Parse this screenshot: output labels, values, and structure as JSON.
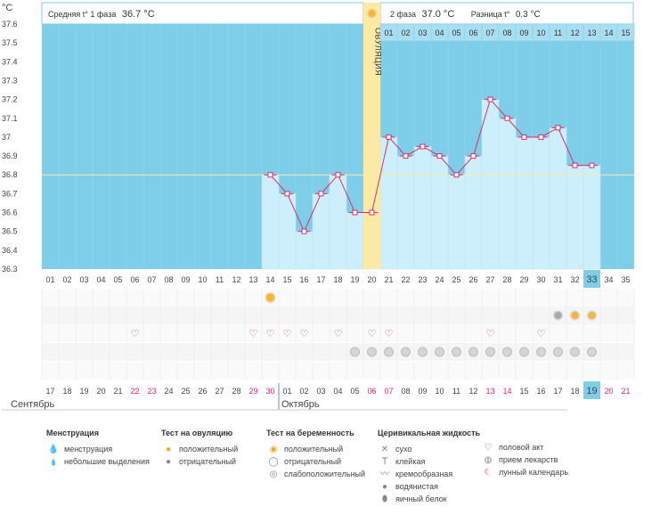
{
  "header": {
    "unit": "°C",
    "phase1_label": "Средняя t° 1 фаза",
    "phase1_value": "36.7 °C",
    "phase2_label": "2 фаза",
    "phase2_value": "37.0 °C",
    "diff_label": "Разница t°",
    "diff_value": "0.3 °C",
    "ovulation_label": "ОВУЛЯЦИЯ"
  },
  "chart_data": {
    "type": "line",
    "ylim": [
      36.3,
      37.6
    ],
    "y_ticks": [
      "37.6",
      "37.5",
      "37.4",
      "37.3",
      "37.2",
      "37.1",
      "37",
      "36.9",
      "36.8",
      "36.7",
      "36.6",
      "36.5",
      "36.4",
      "36.3"
    ],
    "cycle_days": [
      "01",
      "02",
      "03",
      "04",
      "05",
      "06",
      "07",
      "08",
      "09",
      "10",
      "11",
      "12",
      "13",
      "14",
      "15",
      "16",
      "17",
      "18",
      "19",
      "20",
      "21",
      "22",
      "23",
      "24",
      "25",
      "26",
      "27",
      "28",
      "29",
      "30",
      "31",
      "32",
      "33",
      "34",
      "35"
    ],
    "series": [
      {
        "values": [
          null,
          null,
          null,
          null,
          null,
          null,
          null,
          null,
          null,
          null,
          null,
          null,
          null,
          36.8,
          36.7,
          36.5,
          36.7,
          36.8,
          36.6,
          36.6,
          37.0,
          36.9,
          36.95,
          36.9,
          36.8,
          36.9,
          37.2,
          37.1,
          37.0,
          37.0,
          37.05,
          36.85,
          36.85,
          null,
          null
        ]
      }
    ],
    "coverline": 36.8,
    "ovulation_day": "20",
    "current_day": "33",
    "post_ovulation_days": [
      "01",
      "02",
      "03",
      "04",
      "05",
      "06",
      "07",
      "08",
      "09",
      "10",
      "11",
      "12",
      "13",
      "14",
      "15"
    ]
  },
  "calendar": {
    "dates": [
      "17",
      "18",
      "19",
      "20",
      "21",
      "22",
      "23",
      "24",
      "25",
      "26",
      "27",
      "28",
      "29",
      "30",
      "01",
      "02",
      "03",
      "04",
      "05",
      "06",
      "07",
      "08",
      "09",
      "10",
      "11",
      "12",
      "13",
      "14",
      "15",
      "16",
      "17",
      "18",
      "19",
      "20",
      "21"
    ],
    "red_indices": [
      5,
      6,
      12,
      13,
      19,
      20,
      26,
      27,
      33,
      34
    ],
    "month1": "Сентябрь",
    "month2": "Октябрь",
    "current_index": 32
  },
  "markers": {
    "ovulation_positive_days": [
      13
    ],
    "pregnancy_test_days": [
      30,
      31,
      32
    ],
    "intercourse_days": [
      5,
      12,
      13,
      14,
      15,
      17,
      19,
      20,
      26,
      29
    ],
    "medication_days": [
      18,
      19,
      20,
      21,
      22,
      23,
      24,
      25,
      26,
      27,
      28,
      29,
      30,
      31,
      32
    ]
  },
  "colors": {
    "sky": "#7ecde9",
    "bar": "#cdeefb",
    "line": "#d8306a",
    "ovulation": "#fbe9a6",
    "coverline": "#f7ebb0",
    "highlight": "#7ecde9",
    "red_date": "#e8236b"
  },
  "legend": {
    "menstruation": {
      "title": "Менструация",
      "items": [
        {
          "icon": "drop-icon",
          "label": "менструация"
        },
        {
          "icon": "small-drop-icon",
          "label": "небольшие выделения"
        }
      ]
    },
    "ovulation_test": {
      "title": "Тест на овуляцию",
      "items": [
        {
          "icon": "sun-positive-icon",
          "label": "положительный"
        },
        {
          "icon": "sun-negative-icon",
          "label": "отрицательный"
        }
      ]
    },
    "pregnancy_test": {
      "title": "Тест на беременность",
      "items": [
        {
          "icon": "pregnancy-positive-icon",
          "label": "положительный"
        },
        {
          "icon": "pregnancy-negative-icon",
          "label": "отрицательный"
        },
        {
          "icon": "pregnancy-weak-icon",
          "label": "слабоположительный"
        }
      ]
    },
    "cervical": {
      "title": "Церивикальная жидкость",
      "items": [
        {
          "icon": "dry-icon",
          "label": "сухо"
        },
        {
          "icon": "sticky-icon",
          "label": "клейкая"
        },
        {
          "icon": "creamy-icon",
          "label": "кремообразная"
        },
        {
          "icon": "watery-icon",
          "label": "водянистая"
        },
        {
          "icon": "egg-white-icon",
          "label": "яичный белок"
        }
      ]
    },
    "other": {
      "items": [
        {
          "icon": "heart-icon",
          "label": "половой акт"
        },
        {
          "icon": "pill-icon",
          "label": "прием лекарств"
        },
        {
          "icon": "moon-icon",
          "label": "лунный календарь"
        }
      ]
    }
  }
}
